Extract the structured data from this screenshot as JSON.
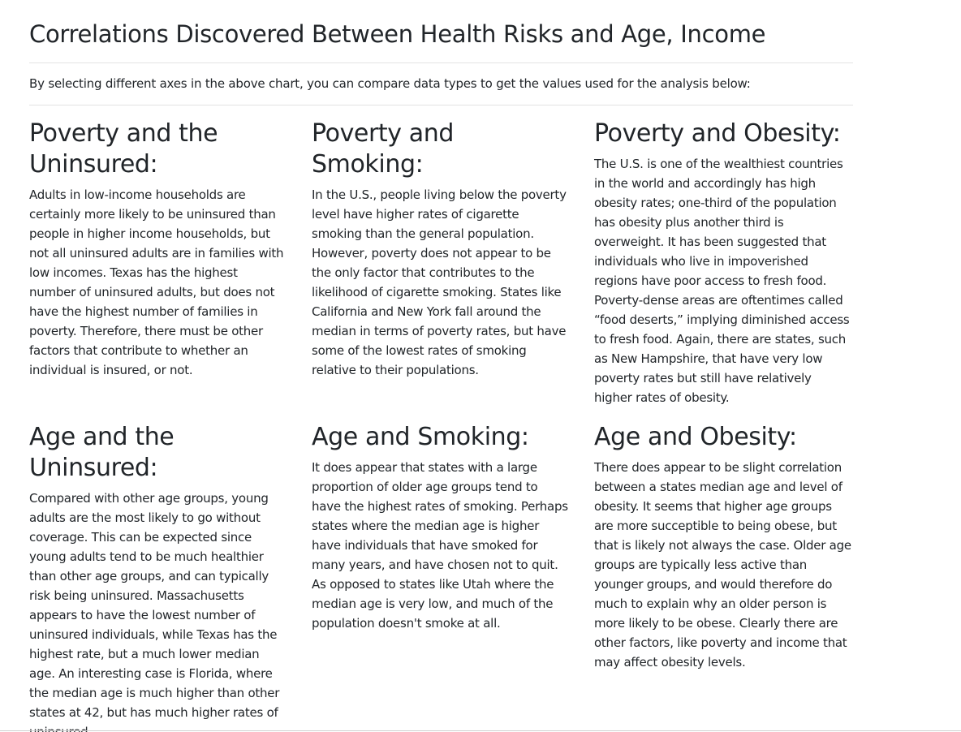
{
  "header": {
    "title": "Correlations Discovered Between Health Risks and Age, Income",
    "intro": "By selecting different axes in the above chart, you can compare data types to get the values used for the analysis below:"
  },
  "sections": [
    {
      "heading": "Poverty and the Uninsured:",
      "body": "Adults in low-income households are certainly more likely to be uninsured than people in higher income households, but not all uninsured adults are in families with low incomes. Texas has the highest number of uninsured adults, but does not have the highest number of families in poverty. Therefore, there must be other factors that contribute to whether an individual is insured, or not."
    },
    {
      "heading": "Poverty and Smoking:",
      "body": "In the U.S., people living below the poverty level have higher rates of cigarette smoking than the general population. However, poverty does not appear to be the only factor that contributes to the likelihood of cigarette smoking. States like California and New York fall around the median in terms of poverty rates, but have some of the lowest rates of smoking relative to their populations."
    },
    {
      "heading": "Poverty and Obesity:",
      "body": "The U.S. is one of the wealthiest countries in the world and accordingly has high obesity rates; one-third of the population has obesity plus another third is overweight. It has been suggested that individuals who live in impoverished regions have poor access to fresh food. Poverty-dense areas are oftentimes called “food deserts,” implying diminished access to fresh food. Again, there are states, such as New Hampshire, that have very low poverty rates but still have relatively higher rates of obesity."
    },
    {
      "heading": "Age and the Uninsured:",
      "body": "Compared with other age groups, young adults are the most likely to go without coverage. This can be expected since young adults tend to be much healthier than other age groups, and can typically risk being uninsured. Massachusetts appears to have the lowest number of uninsured individuals, while Texas has the highest rate, but a much lower median age. An interesting case is Florida, where the median age is much higher than other states at 42, but has much higher rates of uninsured."
    },
    {
      "heading": "Age and Smoking:",
      "body": "It does appear that states with a large proportion of older age groups tend to have the highest rates of smoking. Perhaps states where the median age is higher have individuals that have smoked for many years, and have chosen not to quit. As opposed to states like Utah where the median age is very low, and much of the population doesn't smoke at all."
    },
    {
      "heading": "Age and Obesity:",
      "body": "There does appear to be slight correlation between a states median age and level of obesity. It seems that higher age groups are more succeptible to being obese, but that is likely not always the case. Older age groups are typically less active than younger groups, and would therefore do much to explain why an older person is more likely to be obese. Clearly there are other factors, like poverty and income that may affect obesity levels."
    }
  ]
}
